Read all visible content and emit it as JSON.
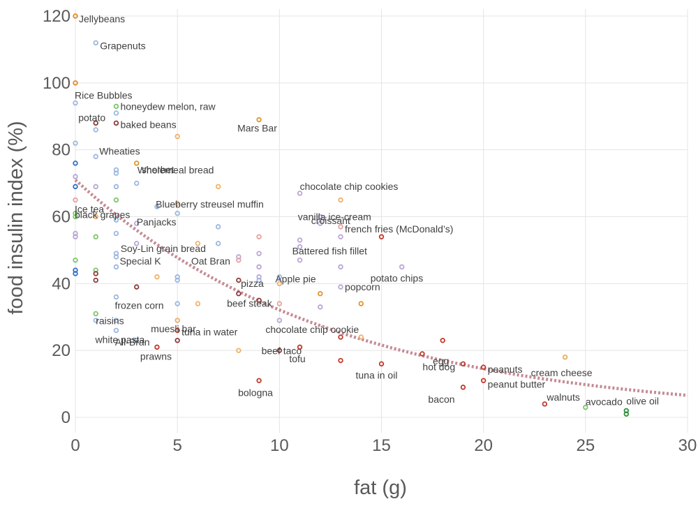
{
  "chart_data": {
    "type": "scatter",
    "title": "",
    "xlabel": "fat (g)",
    "ylabel": "food insulin index (%)",
    "xlim": [
      0,
      30
    ],
    "ylim": [
      0,
      120
    ],
    "x_ticks": [
      0,
      5,
      10,
      15,
      20,
      25,
      30
    ],
    "y_ticks": [
      0,
      20,
      40,
      60,
      80,
      100,
      120
    ],
    "gridlines": true,
    "trendline": {
      "type": "exponential",
      "a": 71,
      "b": -0.0793,
      "style": "dotted",
      "color": "#c48b94"
    },
    "points": [
      {
        "label": "Jellybeans",
        "x": 0,
        "y": 120,
        "color": "#e08a2c"
      },
      {
        "label": "Grapenuts",
        "x": 1,
        "y": 112,
        "color": "#9bb7e0"
      },
      {
        "label": "",
        "x": 0,
        "y": 100,
        "color": "#e08a2c"
      },
      {
        "label": "Rice Bubbles",
        "x": 0,
        "y": 94,
        "color": "#9bb7e0"
      },
      {
        "label": "honeydew melon, raw",
        "x": 2,
        "y": 93,
        "color": "#7ec46b"
      },
      {
        "label": "",
        "x": 2,
        "y": 91,
        "color": "#9bb7e0"
      },
      {
        "label": "Mars Bar",
        "x": 9,
        "y": 89,
        "color": "#d9962a"
      },
      {
        "label": "potato",
        "x": 1,
        "y": 88,
        "color": "#8b3a3a"
      },
      {
        "label": "baked beans",
        "x": 2,
        "y": 88,
        "color": "#8b3a3a"
      },
      {
        "label": "",
        "x": 1,
        "y": 86,
        "color": "#9bb7e0"
      },
      {
        "label": "",
        "x": 5,
        "y": 84,
        "color": "#f2b06a"
      },
      {
        "label": "",
        "x": 0,
        "y": 82,
        "color": "#9bb7e0"
      },
      {
        "label": "Wheaties",
        "x": 1,
        "y": 78,
        "color": "#9bb7e0"
      },
      {
        "label": "sherbet",
        "x": 3,
        "y": 76,
        "color": "#d9962a"
      },
      {
        "label": "",
        "x": 0,
        "y": 76,
        "color": "#2f6fc4"
      },
      {
        "label": "",
        "x": 2,
        "y": 74,
        "color": "#9bb7e0"
      },
      {
        "label": "",
        "x": 2,
        "y": 73,
        "color": "#9bb7e0"
      },
      {
        "label": "",
        "x": 0,
        "y": 72,
        "color": "#b9a5d3"
      },
      {
        "label": "Wholemeal bread",
        "x": 3,
        "y": 70,
        "color": "#9bb7e0"
      },
      {
        "label": "",
        "x": 0,
        "y": 69,
        "color": "#2f6fc4"
      },
      {
        "label": "",
        "x": 1,
        "y": 69,
        "color": "#b9a5d3"
      },
      {
        "label": "",
        "x": 2,
        "y": 69,
        "color": "#9bb7e0"
      },
      {
        "label": "",
        "x": 7,
        "y": 69,
        "color": "#f2b06a"
      },
      {
        "label": "chocolate chip cookies",
        "x": 11,
        "y": 67,
        "color": "#b9a5d3"
      },
      {
        "label": "Ice tea",
        "x": 0,
        "y": 65,
        "color": "#e8a0a0"
      },
      {
        "label": "",
        "x": 2,
        "y": 65,
        "color": "#7ec46b"
      },
      {
        "label": "",
        "x": 13,
        "y": 65,
        "color": "#f2b06a"
      },
      {
        "label": "Blueberry streusel muffin",
        "x": 5,
        "y": 64,
        "color": "#f2b06a"
      },
      {
        "label": "",
        "x": 4,
        "y": 63,
        "color": "#9bb7e0"
      },
      {
        "label": "black grapes",
        "x": 0,
        "y": 61,
        "color": "#7ec46b"
      },
      {
        "label": "",
        "x": 5,
        "y": 61,
        "color": "#9bb7e0"
      },
      {
        "label": "",
        "x": 0,
        "y": 60,
        "color": "#7ec46b"
      },
      {
        "label": "",
        "x": 1,
        "y": 60,
        "color": "#f2b06a"
      },
      {
        "label": "vanilla ice-cream",
        "x": 12,
        "y": 60,
        "color": "#b9a5d3"
      },
      {
        "label": "",
        "x": 2,
        "y": 59,
        "color": "#9bb7e0"
      },
      {
        "label": "Panjacks",
        "x": 3,
        "y": 58,
        "color": "#b9a5d3"
      },
      {
        "label": "croissant",
        "x": 12,
        "y": 58,
        "color": "#b9a5d3"
      },
      {
        "label": "french fries (McDonald’s)",
        "x": 13,
        "y": 57,
        "color": "#e8a0a0"
      },
      {
        "label": "",
        "x": 7,
        "y": 57,
        "color": "#9bb7e0"
      },
      {
        "label": "",
        "x": 2,
        "y": 55,
        "color": "#9bb7e0"
      },
      {
        "label": "",
        "x": 0,
        "y": 55,
        "color": "#b9a5d3"
      },
      {
        "label": "",
        "x": 0,
        "y": 54,
        "color": "#b9a5d3"
      },
      {
        "label": "",
        "x": 1,
        "y": 54,
        "color": "#7ec46b"
      },
      {
        "label": "",
        "x": 9,
        "y": 54,
        "color": "#e8a0a0"
      },
      {
        "label": "",
        "x": 13,
        "y": 54,
        "color": "#b9a5d3"
      },
      {
        "label": "",
        "x": 15,
        "y": 54,
        "color": "#c0392b"
      },
      {
        "label": "Soy-Lin grain bread",
        "x": 3,
        "y": 52,
        "color": "#b9a5d3"
      },
      {
        "label": "",
        "x": 6,
        "y": 52,
        "color": "#f2b06a"
      },
      {
        "label": "",
        "x": 7,
        "y": 52,
        "color": "#9bb7e0"
      },
      {
        "label": "",
        "x": 11,
        "y": 53,
        "color": "#b9a5d3"
      },
      {
        "label": "Battered fish fillet",
        "x": 11,
        "y": 51,
        "color": "#b9a5d3"
      },
      {
        "label": "",
        "x": 9,
        "y": 49,
        "color": "#b9a5d3"
      },
      {
        "label": "",
        "x": 2,
        "y": 49,
        "color": "#9bb7e0"
      },
      {
        "label": "Special K",
        "x": 2,
        "y": 48,
        "color": "#9bb7e0"
      },
      {
        "label": "",
        "x": 0,
        "y": 47,
        "color": "#7ec46b"
      },
      {
        "label": "Oat Bran",
        "x": 8,
        "y": 48,
        "color": "#b9a5d3"
      },
      {
        "label": "",
        "x": 8,
        "y": 47,
        "color": "#e8a0a0"
      },
      {
        "label": "",
        "x": 11,
        "y": 47,
        "color": "#b9a5d3"
      },
      {
        "label": "",
        "x": 2,
        "y": 45,
        "color": "#9bb7e0"
      },
      {
        "label": "",
        "x": 9,
        "y": 45,
        "color": "#b9a5d3"
      },
      {
        "label": "",
        "x": 13,
        "y": 45,
        "color": "#b9a5d3"
      },
      {
        "label": "potato chips",
        "x": 16,
        "y": 45,
        "color": "#b9a5d3"
      },
      {
        "label": "",
        "x": 0,
        "y": 44,
        "color": "#2f6fc4"
      },
      {
        "label": "",
        "x": 1,
        "y": 44,
        "color": "#7ec46b"
      },
      {
        "label": "",
        "x": 0,
        "y": 43,
        "color": "#2f6fc4"
      },
      {
        "label": "",
        "x": 1,
        "y": 43,
        "color": "#8b3a3a"
      },
      {
        "label": "pizza",
        "x": 9,
        "y": 42,
        "color": "#b9a5d3"
      },
      {
        "label": "",
        "x": 10,
        "y": 42,
        "color": "#9bb7e0"
      },
      {
        "label": "",
        "x": 4,
        "y": 42,
        "color": "#f2b06a"
      },
      {
        "label": "",
        "x": 5,
        "y": 42,
        "color": "#9bb7e0"
      },
      {
        "label": "",
        "x": 1,
        "y": 41,
        "color": "#8b3a3a"
      },
      {
        "label": "",
        "x": 5,
        "y": 41,
        "color": "#9bb7e0"
      },
      {
        "label": "",
        "x": 8,
        "y": 41,
        "color": "#8b3a3a"
      },
      {
        "label": "",
        "x": 9,
        "y": 41,
        "color": "#9bb7e0"
      },
      {
        "label": "Apple pie",
        "x": 10,
        "y": 40,
        "color": "#f2b06a"
      },
      {
        "label": "popcorn",
        "x": 13,
        "y": 39,
        "color": "#b9a5d3"
      },
      {
        "label": "",
        "x": 3,
        "y": 39,
        "color": "#8b3a3a"
      },
      {
        "label": "",
        "x": 8,
        "y": 37,
        "color": "#8b3a3a"
      },
      {
        "label": "",
        "x": 12,
        "y": 37,
        "color": "#d9962a"
      },
      {
        "label": "frozen corn",
        "x": 2,
        "y": 36,
        "color": "#9bb7e0"
      },
      {
        "label": "",
        "x": 5,
        "y": 34,
        "color": "#9bb7e0"
      },
      {
        "label": "",
        "x": 6,
        "y": 34,
        "color": "#f2b06a"
      },
      {
        "label": "beef steak",
        "x": 9,
        "y": 35,
        "color": "#8b3a3a"
      },
      {
        "label": "",
        "x": 10,
        "y": 34,
        "color": "#e8a0a0"
      },
      {
        "label": "",
        "x": 14,
        "y": 34,
        "color": "#d9962a"
      },
      {
        "label": "",
        "x": 12,
        "y": 33,
        "color": "#b9a5d3"
      },
      {
        "label": "raisins",
        "x": 1,
        "y": 31,
        "color": "#7ec46b"
      },
      {
        "label": "",
        "x": 5,
        "y": 29,
        "color": "#9bb7e0"
      },
      {
        "label": "muesli bar",
        "x": 5,
        "y": 29,
        "color": "#f2b06a"
      },
      {
        "label": "chocolate chip cookie",
        "x": 10,
        "y": 29,
        "color": "#b9a5d3"
      },
      {
        "label": "",
        "x": 1,
        "y": 29,
        "color": "#9bb7e0"
      },
      {
        "label": "",
        "x": 2,
        "y": 29,
        "color": "#9bb7e0"
      },
      {
        "label": "white pasta",
        "x": 2,
        "y": 26,
        "color": "#9bb7e0"
      },
      {
        "label": "tuna in water",
        "x": 5,
        "y": 26,
        "color": "#c0392b"
      },
      {
        "label": "",
        "x": 13,
        "y": 24,
        "color": "#c0392b"
      },
      {
        "label": "",
        "x": 14,
        "y": 24,
        "color": "#f2b06a"
      },
      {
        "label": "All-Bran",
        "x": 3,
        "y": 23,
        "color": "#9bb7e0"
      },
      {
        "label": "",
        "x": 5,
        "y": 23,
        "color": "#8b3a3a"
      },
      {
        "label": "",
        "x": 18,
        "y": 23,
        "color": "#c0392b"
      },
      {
        "label": "prawns",
        "x": 4,
        "y": 21,
        "color": "#c0392b"
      },
      {
        "label": "beef taco",
        "x": 11,
        "y": 21,
        "color": "#c0392b"
      },
      {
        "label": "",
        "x": 8,
        "y": 20,
        "color": "#f2b06a"
      },
      {
        "label": "tofu",
        "x": 10,
        "y": 20,
        "color": "#8b3a3a"
      },
      {
        "label": "egg",
        "x": 17,
        "y": 19,
        "color": "#c0392b"
      },
      {
        "label": "",
        "x": 24,
        "y": 18,
        "color": "#f2b06a"
      },
      {
        "label": "",
        "x": 13,
        "y": 17,
        "color": "#c0392b"
      },
      {
        "label": "tuna in oil",
        "x": 15,
        "y": 16,
        "color": "#c0392b"
      },
      {
        "label": "hot dog",
        "x": 19,
        "y": 16,
        "color": "#c0392b"
      },
      {
        "label": "peanuts",
        "x": 20,
        "y": 15,
        "color": "#c0392b"
      },
      {
        "label": "cream cheese",
        "x": 24,
        "y": 18,
        "color": "#f2b06a"
      },
      {
        "label": "bologna",
        "x": 9,
        "y": 11,
        "color": "#c0392b"
      },
      {
        "label": "peanut butter",
        "x": 20,
        "y": 11,
        "color": "#c0392b"
      },
      {
        "label": "bacon",
        "x": 19,
        "y": 9,
        "color": "#c0392b"
      },
      {
        "label": "walnuts",
        "x": 23,
        "y": 4,
        "color": "#c0392b"
      },
      {
        "label": "avocado",
        "x": 25,
        "y": 3,
        "color": "#7ec46b"
      },
      {
        "label": "olive oil",
        "x": 27,
        "y": 2,
        "color": "#2e8b3a"
      },
      {
        "label": "",
        "x": 27,
        "y": 1,
        "color": "#2e8b3a"
      }
    ]
  }
}
